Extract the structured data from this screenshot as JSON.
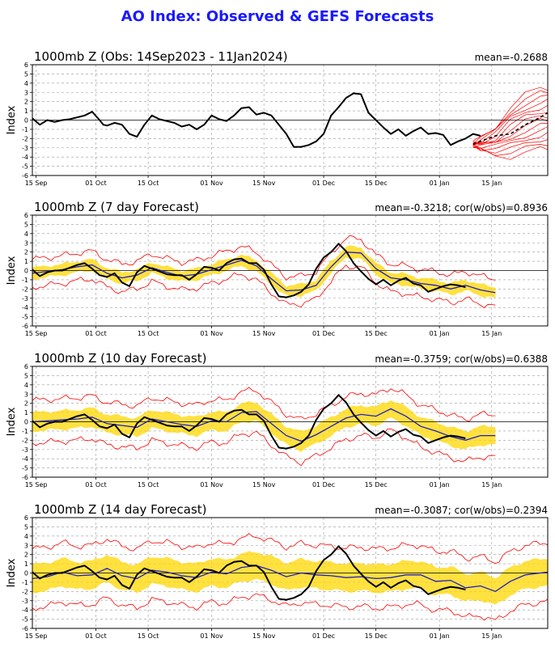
{
  "title": "AO Index: Observed & GEFS Forecasts",
  "colors": {
    "title": "#1a1aff",
    "observed": "#000000",
    "ensemble_mean": "#1f1fbf",
    "spread_band": "#ffd700",
    "bounds": "#ff0000",
    "members": "#ff0000",
    "grid": "#999999"
  },
  "chart_data": [
    {
      "type": "line",
      "title": "1000mb Z (Obs: 14Sep2023 - 11Jan2024)",
      "stat": "mean=-0.2688",
      "ylabel": "Index",
      "ylim": [
        -6,
        6
      ],
      "yticks": [
        -6,
        -5,
        -4,
        -3,
        -2,
        -1,
        0,
        1,
        2,
        3,
        4,
        5,
        6
      ],
      "xticks": [
        "15 Sep",
        "01 Oct",
        "15 Oct",
        "01 Nov",
        "15 Nov",
        "01 Dec",
        "15 Dec",
        "01 Jan",
        "15 Jan"
      ],
      "xtick_days": [
        1,
        17,
        31,
        48,
        62,
        78,
        92,
        109,
        123
      ],
      "xlim": [
        0,
        138
      ],
      "grid": true,
      "observed": {
        "x": [
          0,
          2,
          4,
          6,
          8,
          10,
          12,
          14,
          16,
          18,
          19,
          20,
          22,
          24,
          26,
          28,
          30,
          32,
          34,
          36,
          38,
          40,
          42,
          44,
          46,
          48,
          50,
          52,
          54,
          56,
          58,
          60,
          62,
          64,
          66,
          68,
          70,
          72,
          74,
          76,
          78,
          80,
          82,
          84,
          86,
          88,
          90,
          92,
          94,
          96,
          98,
          100,
          102,
          104,
          106,
          108,
          110,
          112,
          114,
          116,
          118,
          120
        ],
        "y": [
          0.2,
          -0.5,
          0.0,
          -0.2,
          0.0,
          0.1,
          0.3,
          0.5,
          0.9,
          0.0,
          -0.5,
          -0.6,
          -0.3,
          -0.5,
          -1.5,
          -1.8,
          -0.5,
          0.5,
          0.1,
          -0.1,
          -0.3,
          -0.7,
          -0.5,
          -1.0,
          -0.5,
          0.5,
          0.1,
          -0.1,
          0.5,
          1.3,
          1.4,
          0.6,
          0.8,
          0.5,
          -0.5,
          -1.5,
          -2.9,
          -2.9,
          -2.7,
          -2.3,
          -1.5,
          0.5,
          1.4,
          2.4,
          2.9,
          2.8,
          0.8,
          0.0,
          -0.8,
          -1.5,
          -1.0,
          -1.7,
          -1.2,
          -0.8,
          -1.5,
          -1.4,
          -1.6,
          -2.7,
          -2.3,
          -2.0,
          -1.5,
          -1.7
        ]
      },
      "member_range": {
        "x": [
          118,
          120,
          124,
          128,
          132,
          136,
          138
        ],
        "high": [
          -2.4,
          -2.0,
          -0.8,
          1.5,
          2.8,
          3.4,
          3.5
        ],
        "low": [
          -2.9,
          -3.3,
          -3.8,
          -4.0,
          -3.6,
          -3.1,
          -3.0
        ]
      },
      "ensemble_mean_dashed": {
        "x": [
          118,
          120,
          124,
          128,
          132,
          136,
          138
        ],
        "y": [
          -2.6,
          -2.3,
          -1.7,
          -1.5,
          -0.5,
          0.3,
          0.8
        ]
      }
    },
    {
      "type": "line",
      "title": "1000mb Z (7 day Forecast)",
      "stat": "mean=-0.3218; cor(w/obs)=0.8936",
      "ylabel": "Index",
      "ylim": [
        -6,
        6
      ],
      "yticks": [
        -6,
        -5,
        -4,
        -3,
        -2,
        -1,
        0,
        1,
        2,
        3,
        4,
        5,
        6
      ],
      "xticks": [
        "15 Sep",
        "01 Oct",
        "15 Oct",
        "01 Nov",
        "15 Nov",
        "01 Dec",
        "15 Dec",
        "01 Jan",
        "15 Jan"
      ],
      "xtick_days": [
        1,
        17,
        31,
        48,
        62,
        78,
        92,
        109,
        123
      ],
      "xlim": [
        0,
        138
      ],
      "grid": true,
      "observed": {
        "x": [
          0,
          2,
          4,
          6,
          8,
          10,
          12,
          14,
          16,
          18,
          20,
          22,
          24,
          26,
          28,
          30,
          32,
          34,
          36,
          38,
          40,
          42,
          44,
          46,
          48,
          50,
          52,
          54,
          56,
          58,
          60,
          62,
          64,
          66,
          68,
          70,
          72,
          74,
          76,
          78,
          80,
          82,
          84,
          86,
          88,
          90,
          92,
          94,
          96,
          98,
          100,
          102,
          104,
          106,
          108,
          110,
          112,
          114,
          116
        ],
        "y": [
          0.1,
          -0.6,
          -0.2,
          0.0,
          0.0,
          0.3,
          0.6,
          0.8,
          0.2,
          -0.5,
          -0.7,
          -0.3,
          -1.3,
          -1.7,
          -0.2,
          0.5,
          0.2,
          -0.1,
          -0.4,
          -0.5,
          -0.5,
          -1.0,
          -0.4,
          0.4,
          0.3,
          0.0,
          0.8,
          1.2,
          1.3,
          0.8,
          0.8,
          0.1,
          -1.5,
          -2.8,
          -2.9,
          -2.7,
          -2.3,
          -1.5,
          0.2,
          1.4,
          2.0,
          2.9,
          2.1,
          0.8,
          -0.1,
          -0.9,
          -1.5,
          -1.0,
          -1.6,
          -1.1,
          -0.8,
          -1.4,
          -1.6,
          -2.3,
          -2.0,
          -1.7,
          -1.5,
          -1.6,
          -1.8
        ]
      },
      "ensemble_mean": {
        "x": [
          0,
          4,
          8,
          12,
          16,
          20,
          24,
          28,
          32,
          36,
          40,
          44,
          48,
          52,
          56,
          60,
          64,
          68,
          72,
          76,
          80,
          84,
          88,
          92,
          96,
          100,
          104,
          108,
          112,
          116,
          120,
          124
        ],
        "y": [
          -0.3,
          -0.1,
          0.1,
          0.4,
          0.6,
          -0.3,
          -0.8,
          -0.5,
          0.3,
          -0.2,
          -0.6,
          -0.4,
          0.1,
          0.6,
          1.1,
          0.5,
          -0.9,
          -2.2,
          -2.1,
          -1.6,
          0.4,
          2.0,
          1.9,
          0.2,
          -0.8,
          -1.0,
          -1.4,
          -1.6,
          -2.0,
          -1.6,
          -2.1,
          -2.4
        ]
      },
      "band_half_width": 0.6,
      "bounds_half_width": 1.5
    },
    {
      "type": "line",
      "title": "1000mb Z (10 day Forecast)",
      "stat": "mean=-0.3759; cor(w/obs)=0.6388",
      "ylabel": "Index",
      "ylim": [
        -6,
        6
      ],
      "yticks": [
        -6,
        -5,
        -4,
        -3,
        -2,
        -1,
        0,
        1,
        2,
        3,
        4,
        5,
        6
      ],
      "xticks": [
        "15 Sep",
        "01 Oct",
        "15 Oct",
        "01 Nov",
        "15 Nov",
        "01 Dec",
        "15 Dec",
        "01 Jan",
        "15 Jan"
      ],
      "xtick_days": [
        1,
        17,
        31,
        48,
        62,
        78,
        92,
        109,
        123
      ],
      "xlim": [
        0,
        138
      ],
      "grid": true,
      "observed": {
        "x": [
          0,
          2,
          4,
          6,
          8,
          10,
          12,
          14,
          16,
          18,
          20,
          22,
          24,
          26,
          28,
          30,
          32,
          34,
          36,
          38,
          40,
          42,
          44,
          46,
          48,
          50,
          52,
          54,
          56,
          58,
          60,
          62,
          64,
          66,
          68,
          70,
          72,
          74,
          76,
          78,
          80,
          82,
          84,
          86,
          88,
          90,
          92,
          94,
          96,
          98,
          100,
          102,
          104,
          106,
          108,
          110,
          112,
          114,
          116
        ],
        "y": [
          0.1,
          -0.6,
          -0.2,
          0.0,
          0.0,
          0.3,
          0.6,
          0.8,
          0.2,
          -0.5,
          -0.7,
          -0.3,
          -1.3,
          -1.7,
          -0.2,
          0.5,
          0.2,
          -0.1,
          -0.4,
          -0.5,
          -0.5,
          -1.0,
          -0.4,
          0.4,
          0.3,
          0.0,
          0.8,
          1.2,
          1.3,
          0.8,
          0.8,
          0.1,
          -1.5,
          -2.8,
          -2.9,
          -2.7,
          -2.3,
          -1.5,
          0.2,
          1.4,
          2.0,
          2.9,
          2.1,
          0.8,
          -0.1,
          -0.9,
          -1.5,
          -1.0,
          -1.6,
          -1.1,
          -0.8,
          -1.4,
          -1.6,
          -2.3,
          -2.0,
          -1.7,
          -1.5,
          -1.6,
          -1.8
        ]
      },
      "ensemble_mean": {
        "x": [
          0,
          4,
          8,
          12,
          16,
          20,
          24,
          28,
          32,
          36,
          40,
          44,
          48,
          52,
          56,
          60,
          64,
          68,
          72,
          76,
          80,
          84,
          88,
          92,
          96,
          100,
          104,
          108,
          112,
          116,
          120,
          124
        ],
        "y": [
          0.0,
          0.1,
          0.2,
          0.3,
          0.5,
          -0.2,
          -0.4,
          -0.6,
          0.3,
          0.0,
          -0.3,
          -0.5,
          0.1,
          0.0,
          1.0,
          1.1,
          -0.2,
          -1.5,
          -2.1,
          -1.4,
          -0.5,
          0.4,
          0.8,
          0.6,
          1.4,
          0.6,
          -0.5,
          -1.0,
          -1.6,
          -2.0,
          -1.5,
          -1.5
        ]
      },
      "band_half_width": 1.0,
      "bounds_half_width": 2.3
    },
    {
      "type": "line",
      "title": "1000mb Z (14 day Forecast)",
      "stat": "mean=-0.3087; cor(w/obs)=0.2394",
      "ylabel": "Index",
      "ylim": [
        -6,
        6
      ],
      "yticks": [
        -6,
        -5,
        -4,
        -3,
        -2,
        -1,
        0,
        1,
        2,
        3,
        4,
        5,
        6
      ],
      "xticks": [
        "15 Sep",
        "01 Oct",
        "15 Oct",
        "01 Nov",
        "15 Nov",
        "01 Dec",
        "15 Dec",
        "01 Jan",
        "15 Jan"
      ],
      "xtick_days": [
        1,
        17,
        31,
        48,
        62,
        78,
        92,
        109,
        123
      ],
      "xlim": [
        0,
        138
      ],
      "grid": true,
      "observed": {
        "x": [
          0,
          2,
          4,
          6,
          8,
          10,
          12,
          14,
          16,
          18,
          20,
          22,
          24,
          26,
          28,
          30,
          32,
          34,
          36,
          38,
          40,
          42,
          44,
          46,
          48,
          50,
          52,
          54,
          56,
          58,
          60,
          62,
          64,
          66,
          68,
          70,
          72,
          74,
          76,
          78,
          80,
          82,
          84,
          86,
          88,
          90,
          92,
          94,
          96,
          98,
          100,
          102,
          104,
          106,
          108,
          110,
          112,
          114,
          116
        ],
        "y": [
          0.1,
          -0.6,
          -0.2,
          0.0,
          0.0,
          0.3,
          0.6,
          0.8,
          0.2,
          -0.5,
          -0.7,
          -0.3,
          -1.3,
          -1.7,
          -0.2,
          0.5,
          0.2,
          -0.1,
          -0.4,
          -0.5,
          -0.5,
          -1.0,
          -0.4,
          0.4,
          0.3,
          0.0,
          0.8,
          1.2,
          1.3,
          0.8,
          0.8,
          0.1,
          -1.5,
          -2.8,
          -2.9,
          -2.7,
          -2.3,
          -1.5,
          0.2,
          1.4,
          2.0,
          2.9,
          2.1,
          0.8,
          -0.1,
          -0.9,
          -1.5,
          -1.0,
          -1.6,
          -1.1,
          -0.8,
          -1.4,
          -1.6,
          -2.3,
          -2.0,
          -1.7,
          -1.5,
          -1.6,
          -1.8
        ]
      },
      "ensemble_mean": {
        "x": [
          0,
          4,
          8,
          12,
          16,
          20,
          24,
          28,
          32,
          36,
          40,
          44,
          48,
          52,
          56,
          60,
          64,
          68,
          72,
          76,
          80,
          84,
          88,
          92,
          96,
          100,
          104,
          108,
          112,
          116,
          120,
          124,
          128,
          132,
          136,
          138
        ],
        "y": [
          -0.6,
          -0.4,
          0.1,
          -0.3,
          -0.2,
          0.5,
          -0.3,
          -0.6,
          0.3,
          0.1,
          -0.3,
          -0.5,
          0.1,
          -0.1,
          0.6,
          0.8,
          0.3,
          -0.4,
          0.0,
          -0.2,
          -0.3,
          -0.5,
          -0.4,
          -0.6,
          -0.5,
          -0.2,
          -0.2,
          -0.9,
          -0.8,
          -1.6,
          -1.4,
          -2.0,
          -0.9,
          -0.2,
          0.0,
          0.1
        ]
      },
      "band_half_width": 1.5,
      "bounds_half_width": 3.2
    }
  ]
}
